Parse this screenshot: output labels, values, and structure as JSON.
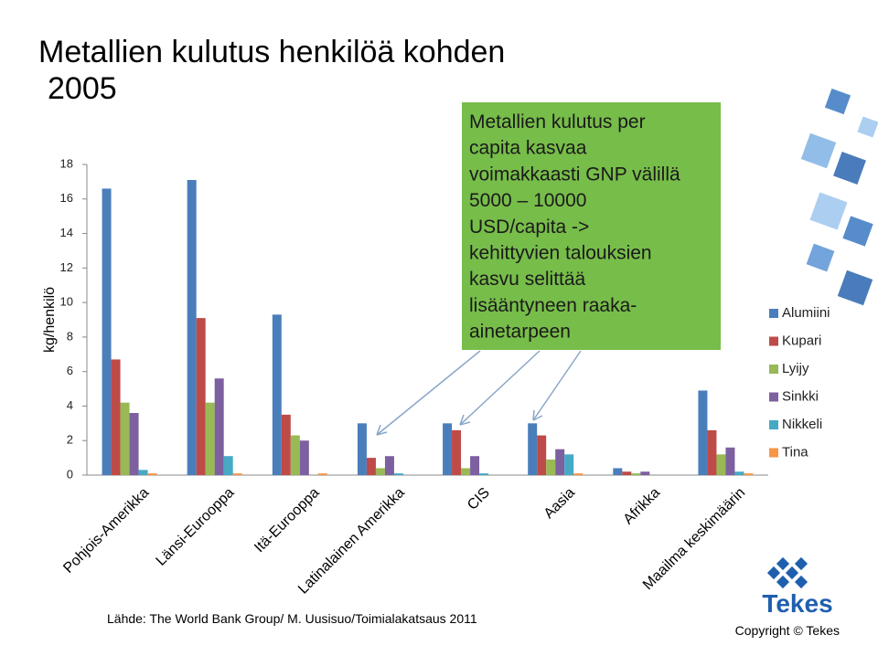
{
  "chart_data": {
    "type": "bar",
    "title": "Metallien kulutus henkilöä kohden",
    "subtitle": "2005",
    "y_label": "kg/henkilö",
    "categories": [
      "Pohjois-Amerikka",
      "Länsi-Eurooppa",
      "Itä-Eurooppa",
      "Latinalainen Amerikka",
      "CIS",
      "Aasia",
      "Afrikka",
      "Maailma keskimäärin"
    ],
    "series": [
      {
        "name": "Alumiini",
        "color": "#4a7ebb",
        "values": [
          16.6,
          17.1,
          9.3,
          3.0,
          3.0,
          3.0,
          0.4,
          4.9
        ]
      },
      {
        "name": "Kupari",
        "color": "#be4b48",
        "values": [
          6.7,
          9.1,
          3.5,
          1.0,
          2.6,
          2.3,
          0.2,
          2.6
        ]
      },
      {
        "name": "Lyijy",
        "color": "#98b954",
        "values": [
          4.2,
          4.2,
          2.3,
          0.4,
          0.4,
          0.9,
          0.1,
          1.2
        ]
      },
      {
        "name": "Sinkki",
        "color": "#7d60a0",
        "values": [
          3.6,
          5.6,
          2.0,
          1.1,
          1.1,
          1.5,
          0.2,
          1.6
        ]
      },
      {
        "name": "Nikkeli",
        "color": "#46aac5",
        "values": [
          0.3,
          1.1,
          0,
          0.1,
          0.1,
          1.2,
          0,
          0.2
        ]
      },
      {
        "name": "Tina",
        "color": "#f79646",
        "values": [
          0.1,
          0.1,
          0.1,
          0,
          0,
          0.1,
          0,
          0.1
        ]
      }
    ],
    "ylim": [
      0,
      18
    ],
    "yticks": [
      0,
      2,
      4,
      6,
      8,
      10,
      12,
      14,
      16,
      18
    ],
    "annotation": [
      "Metallien kulutus per",
      "capita kasvaa",
      "voimakkaasti GNP välillä",
      "5000 – 10000",
      "USD/capita ->",
      "kehittyvien talouksien",
      "kasvu selittää",
      "lisääntyneen  raaka-",
      "ainetarpeen"
    ],
    "source": "Lähde: The World  Bank Group/ M. Uusisuo/Toimialakatsaus 2011",
    "logo": "Tekes",
    "copyright": "Copyright © Tekes"
  }
}
